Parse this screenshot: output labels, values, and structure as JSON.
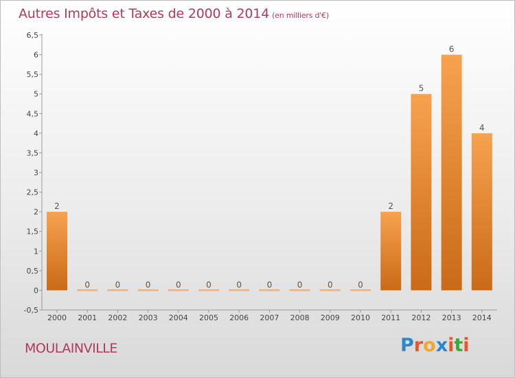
{
  "header": {
    "title": "Autres Impôts et Taxes de 2000 à 2014",
    "subtitle": "(en milliers d'€)"
  },
  "footer": {
    "commune": "MOULAINVILLE",
    "logo_text": "Proxiti"
  },
  "colors": {
    "title": "#b03a5a",
    "bar_top": "#f7a24f",
    "bar_bottom": "#c96a17",
    "zero_bar": "#f0b27c",
    "axis": "#999999",
    "logo_letters": [
      "#2e86c8",
      "#e8562a",
      "#f2a72a",
      "#2e86c8",
      "#e8562a",
      "#3aaa35",
      "#e8562a"
    ]
  },
  "chart_data": {
    "type": "bar",
    "categories": [
      "2000",
      "2001",
      "2002",
      "2003",
      "2004",
      "2005",
      "2006",
      "2007",
      "2008",
      "2009",
      "2010",
      "2011",
      "2012",
      "2013",
      "2014"
    ],
    "values": [
      2,
      0,
      0,
      0,
      0,
      0,
      0,
      0,
      0,
      0,
      0,
      2,
      5,
      6,
      4
    ],
    "data_labels": [
      "2",
      "0",
      "0",
      "0",
      "0",
      "0",
      "0",
      "0",
      "0",
      "0",
      "0",
      "2",
      "5",
      "6",
      "4"
    ],
    "yticks": [
      -0.5,
      0,
      0.5,
      1,
      1.5,
      2,
      2.5,
      3,
      3.5,
      4,
      4.5,
      5,
      5.5,
      6,
      6.5
    ],
    "ytick_labels": [
      "-0,5",
      "0",
      "0,5",
      "1",
      "1,5",
      "2",
      "2,5",
      "3",
      "3,5",
      "4",
      "4,5",
      "5",
      "5,5",
      "6",
      "6,5"
    ],
    "ylim": [
      -0.5,
      6.5
    ],
    "grid": false,
    "legend": "none"
  }
}
